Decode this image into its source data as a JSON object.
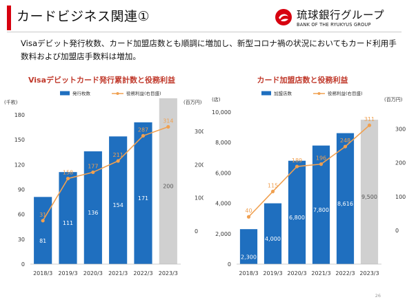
{
  "slide": {
    "title": "カードビジネス関連①",
    "logo_jp": "琉球銀行グループ",
    "logo_en": "BANK OF THE RYUKYUS GROUP",
    "lead": "Visaデビット発行枚数、カード加盟店数とも順調に増加し、新型コロナ禍の状況においてもカード利用手数料および加盟店手数料は増加。",
    "page_number": "26",
    "colors": {
      "accent": "#d7000f",
      "bar": "#1f6fbf",
      "bar_forecast": "#d0d0d0",
      "line": "#f0a050"
    }
  },
  "chart_data": [
    {
      "type": "bar",
      "title": "Visaデビットカード発行累計数と役務利益",
      "categories": [
        "2018/3",
        "2019/3",
        "2020/3",
        "2021/3",
        "2022/3",
        "2023/3"
      ],
      "series": [
        {
          "name": "発行枚数",
          "kind": "bar",
          "values": [
            81,
            111,
            136,
            154,
            171,
            200
          ]
        },
        {
          "name": "役務利益(右目盛)",
          "kind": "line",
          "axis": "right",
          "values": [
            31,
            158,
            177,
            211,
            287,
            314
          ]
        }
      ],
      "forecast_index": 5,
      "left_unit": "(千枚)",
      "right_unit": "(百万円)",
      "ylim": [
        0,
        180
      ],
      "yticks": [
        "0",
        "30",
        "60",
        "90",
        "120",
        "150",
        "180"
      ],
      "y2lim": [
        -100,
        350
      ],
      "y2ticks": [
        "0",
        "100",
        "200",
        "300"
      ],
      "legend_position": "top",
      "grid": false
    },
    {
      "type": "bar",
      "title": "カード加盟店数と役務利益",
      "categories": [
        "2018/3",
        "2019/3",
        "2020/3",
        "2021/3",
        "2022/3",
        "2023/3"
      ],
      "series": [
        {
          "name": "加盟店数",
          "kind": "bar",
          "values": [
            2300,
            4000,
            6800,
            7800,
            8616,
            9500
          ]
        },
        {
          "name": "役務利益(右目盛)",
          "kind": "line",
          "axis": "right",
          "values": [
            40,
            115,
            189,
            196,
            248,
            311
          ]
        }
      ],
      "forecast_index": 5,
      "left_unit": "(店)",
      "right_unit": "(百万円)",
      "ylim": [
        0,
        10000
      ],
      "yticks": [
        "0",
        "2,000",
        "4,000",
        "6,000",
        "8,000",
        "10,000"
      ],
      "y2lim": [
        -100,
        350
      ],
      "y2ticks": [
        "0",
        "100",
        "200",
        "300"
      ],
      "legend_position": "top",
      "grid": false
    }
  ]
}
